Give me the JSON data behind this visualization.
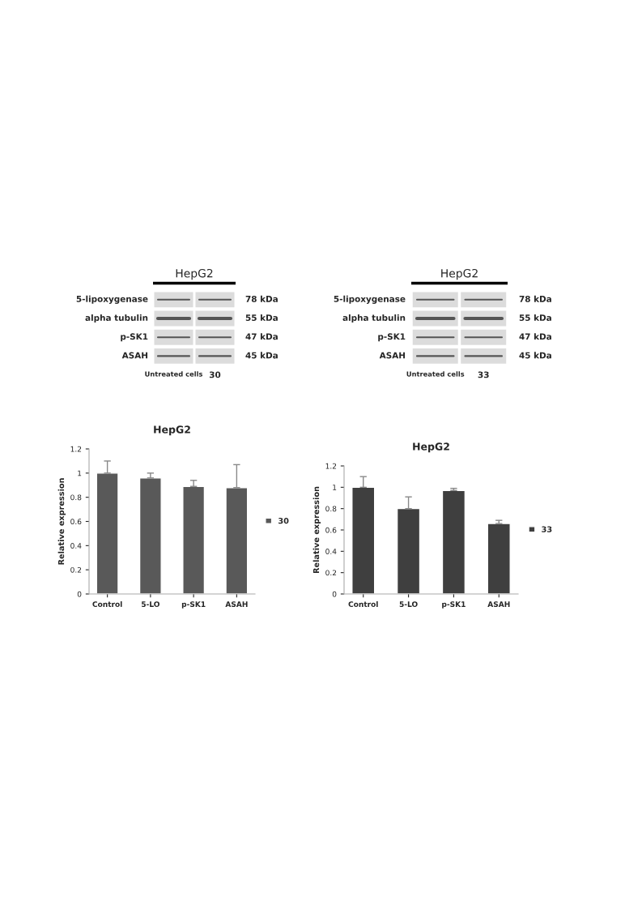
{
  "chart_data": [
    {
      "type": "other",
      "title": "HepG2",
      "annotations": [
        "5-lipoxygenase",
        "alpha tubulin",
        "p-SK1",
        "ASAH",
        "78 kDa",
        "55 kDa",
        "47 kDa",
        "45 kDa",
        "Untreated cells",
        "30"
      ]
    },
    {
      "type": "other",
      "title": "HepG2",
      "annotations": [
        "5-lipoxygenase",
        "alpha tubulin",
        "p-SK1",
        "ASAH",
        "78 kDa",
        "55 kDa",
        "47 kDa",
        "45 kDa",
        "Untreated cells",
        "33"
      ]
    },
    {
      "type": "bar",
      "title": "HepG2",
      "ylabel": "Relative expression",
      "categories": [
        "Control",
        "5-LO",
        "p-SK1",
        "ASAH"
      ],
      "series": [
        {
          "name": "30",
          "color": "#595959",
          "values": [
            1.0,
            0.96,
            0.89,
            0.88
          ],
          "errors": [
            [
              1.0,
              1.1
            ],
            [
              0.96,
              1.0
            ],
            [
              0.89,
              0.94
            ],
            [
              0.88,
              1.07
            ]
          ]
        }
      ],
      "ylim": [
        0,
        1.2
      ],
      "yticks": [
        0,
        0.2,
        0.4,
        0.6,
        0.8,
        1,
        1.2
      ],
      "legend": "right",
      "grid": false
    },
    {
      "type": "bar",
      "title": "HepG2",
      "ylabel": "Relative expression",
      "categories": [
        "Control",
        "5-LO",
        "p-SK1",
        "ASAH"
      ],
      "series": [
        {
          "name": "33",
          "color": "#3f3f3f",
          "values": [
            1.0,
            0.8,
            0.97,
            0.66
          ],
          "errors": [
            [
              1.0,
              1.1
            ],
            [
              0.8,
              0.91
            ],
            [
              0.97,
              0.99
            ],
            [
              0.66,
              0.69
            ]
          ]
        }
      ],
      "ylim": [
        0,
        1.2
      ],
      "yticks": [
        0,
        0.2,
        0.4,
        0.6,
        0.8,
        1,
        1.2
      ],
      "legend": "right",
      "grid": false
    }
  ]
}
